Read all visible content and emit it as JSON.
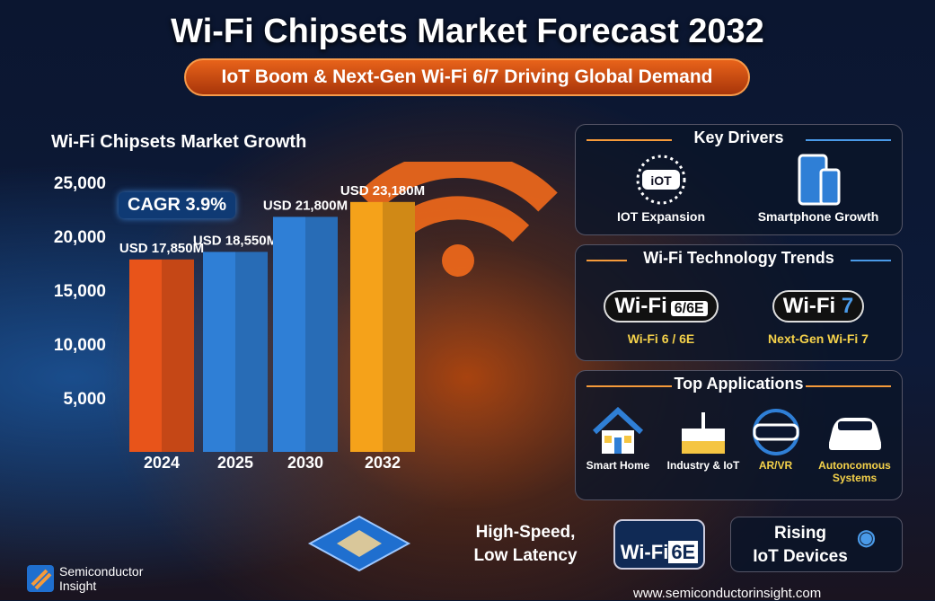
{
  "header": {
    "title": "Wi-Fi Chipsets Market Forecast 2032",
    "subtitle": "IoT Boom & Next-Gen Wi-Fi 6/7 Driving Global Demand"
  },
  "chart_data": {
    "type": "bar",
    "title": "Wi-Fi Chipsets Market Growth",
    "categories": [
      "2024",
      "2025",
      "2030",
      "2032"
    ],
    "values": [
      17850,
      18550,
      21800,
      23180
    ],
    "data_labels": [
      "USD 17,850M",
      "USD 18,550M",
      "USD 21,800M",
      "USD 23,180M"
    ],
    "yticks": [
      "5,000",
      "10,000",
      "15,000",
      "20,000",
      "25,000"
    ],
    "ylim": [
      0,
      25000
    ],
    "grid": false,
    "xlabel": "",
    "ylabel": "",
    "colors": [
      "#e8541a",
      "#2f7fd6",
      "#2f7fd6",
      "#f5a21a"
    ],
    "annotation": "CAGR 3.9%"
  },
  "key_drivers": {
    "title": "Key Drivers",
    "items": [
      {
        "label": "IOT Expansion",
        "icon_text": "iOT"
      },
      {
        "label": "Smartphone Growth"
      }
    ]
  },
  "trends": {
    "title": "Wi-Fi Technology Trends",
    "items": [
      {
        "badge": "Wi-Fi",
        "badge_suffix": "6/6E",
        "label": "Wi-Fi 6 / 6E"
      },
      {
        "badge": "Wi-Fi",
        "badge_suffix": "7",
        "label": "Next-Gen Wi-Fi 7"
      }
    ]
  },
  "applications": {
    "title": "Top Applications",
    "items": [
      {
        "label": "Smart Home"
      },
      {
        "label": "Industry & IoT"
      },
      {
        "label": "AR/VR"
      },
      {
        "label": "Autoncomous Systems"
      }
    ]
  },
  "bottom": {
    "feature_line1": "High-Speed,",
    "feature_line2": "Low Latency",
    "badge": "Wi-Fi",
    "badge_suffix": "6E",
    "rising_line1": "Rising",
    "rising_line2": "IoT Devices"
  },
  "brand": {
    "line1": "Semiconductor",
    "line2": "Insight",
    "url": "www.semiconductorinsight.com"
  }
}
